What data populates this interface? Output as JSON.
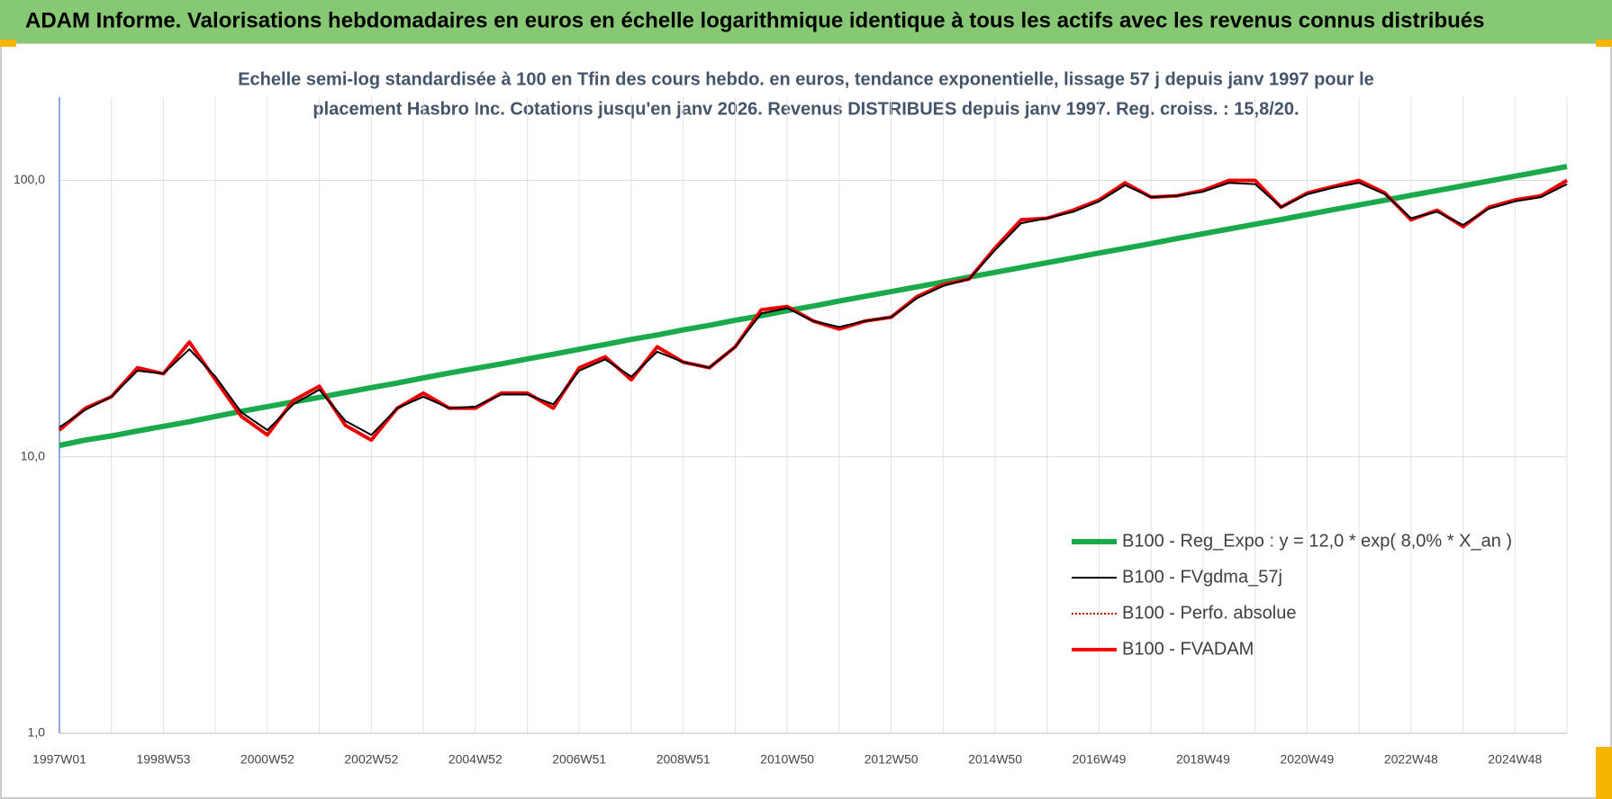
{
  "header": {
    "title": "ADAM Informe. Valorisations hebdomadaires en euros en échelle logarithmique identique à tous les actifs avec les revenus connus distribués"
  },
  "chart_data": {
    "type": "line",
    "subtitle": [
      "Echelle semi-log standardisée à 100 en Tfin des cours hebdo. en euros, tendance exponentielle, lissage 57 j depuis janv 1997 pour le",
      "placement Hasbro Inc. Cotations jusqu'en janv 2026. Revenus DISTRIBUES depuis janv 1997. Reg. croiss. : 15,8/20."
    ],
    "categories": [
      "1997W01",
      null,
      null,
      null,
      "1998W53",
      null,
      null,
      null,
      "2000W52",
      null,
      null,
      null,
      "2002W52",
      null,
      null,
      null,
      "2004W52",
      null,
      null,
      null,
      "2006W51",
      null,
      null,
      null,
      "2008W51",
      null,
      null,
      null,
      "2010W50",
      null,
      null,
      null,
      "2012W50",
      null,
      null,
      null,
      "2014W50",
      null,
      null,
      null,
      "2016W49",
      null,
      null,
      null,
      "2018W49",
      null,
      null,
      null,
      "2020W49",
      null,
      null,
      null,
      "2022W48",
      null,
      null,
      null,
      "2024W48",
      null,
      null
    ],
    "series": [
      {
        "name": "B100 - Reg_Expo : y = 12,0 * exp( 8,0% *  X_an )",
        "color": "#1aaa4b",
        "style": "solid",
        "values": [
          11.0,
          11.5,
          11.9,
          12.4,
          12.9,
          13.4,
          14.0,
          14.6,
          15.2,
          15.8,
          16.4,
          17.1,
          17.8,
          18.5,
          19.3,
          20.1,
          20.9,
          21.7,
          22.6,
          23.5,
          24.5,
          25.5,
          26.6,
          27.6,
          28.8,
          29.9,
          31.2,
          32.4,
          33.8,
          35.1,
          36.6,
          38.1,
          39.6,
          41.2,
          42.9,
          44.7,
          46.5,
          48.4,
          50.4,
          52.4,
          54.6,
          56.8,
          59.1,
          61.6,
          64.1,
          66.7,
          69.4,
          72.2,
          75.2,
          78.3,
          81.5,
          84.8,
          88.3,
          91.9,
          95.6,
          99.5,
          103.6,
          107.8,
          112.2
        ]
      },
      {
        "name": "B100 - FVgdma_57j",
        "color": "#000000",
        "style": "solid",
        "values": [
          12.8,
          14.8,
          16.5,
          20.5,
          20.0,
          24.5,
          19.5,
          14.5,
          12.5,
          15.5,
          17.5,
          13.5,
          12.0,
          15.0,
          16.5,
          15.0,
          15.2,
          16.8,
          16.8,
          15.5,
          20.5,
          22.5,
          19.5,
          24.0,
          22.0,
          21.0,
          25.0,
          33.0,
          34.5,
          31.0,
          29.5,
          31.0,
          32.0,
          37.5,
          41.5,
          44.0,
          56.0,
          70.0,
          73.0,
          77.0,
          84.0,
          96.0,
          87.0,
          88.0,
          91.0,
          98.0,
          97.0,
          80.0,
          89.0,
          94.0,
          98.0,
          89.0,
          73.0,
          77.0,
          69.0,
          79.0,
          84.0,
          87.0,
          97.0
        ]
      },
      {
        "name": "B100 - Perfo. absolue",
        "color": "#c00000",
        "style": "dotted",
        "values": [
          12.5,
          15.0,
          16.5,
          21.0,
          20.0,
          26.0,
          19.0,
          14.0,
          12.0,
          16.0,
          18.0,
          13.0,
          11.5,
          15.0,
          17.0,
          15.0,
          15.0,
          17.0,
          17.0,
          15.0,
          21.0,
          23.0,
          19.0,
          25.0,
          22.0,
          21.0,
          25.0,
          34.0,
          35.0,
          31.0,
          29.0,
          31.0,
          32.0,
          38.0,
          42.0,
          44.0,
          57.0,
          72.0,
          73.0,
          78.0,
          85.0,
          98.0,
          87.0,
          88.0,
          92.0,
          100.0,
          100.0,
          80.0,
          90.0,
          95.0,
          100.0,
          90.0,
          72.0,
          78.0,
          68.0,
          80.0,
          85.0,
          88.0,
          100.0
        ]
      },
      {
        "name": "B100 - FVADAM",
        "color": "#ff0000",
        "style": "solid",
        "values": [
          12.5,
          15.0,
          16.5,
          21.0,
          20.0,
          26.0,
          19.0,
          14.0,
          12.0,
          16.0,
          18.0,
          13.0,
          11.5,
          15.0,
          17.0,
          15.0,
          15.0,
          17.0,
          17.0,
          15.0,
          21.0,
          23.0,
          19.0,
          25.0,
          22.0,
          21.0,
          25.0,
          34.0,
          35.0,
          31.0,
          29.0,
          31.0,
          32.0,
          38.0,
          42.0,
          44.0,
          57.0,
          72.0,
          73.0,
          78.0,
          85.0,
          98.0,
          87.0,
          88.0,
          92.0,
          100.0,
          100.0,
          80.0,
          90.0,
          95.0,
          100.0,
          90.0,
          72.0,
          78.0,
          68.0,
          80.0,
          85.0,
          88.0,
          100.0
        ]
      }
    ],
    "ylim": [
      1,
      200
    ],
    "log_y": true,
    "yticks": [
      {
        "value": 1,
        "label": "1,0"
      },
      {
        "value": 10,
        "label": "10,0"
      },
      {
        "value": 100,
        "label": "100,0"
      }
    ],
    "grid": true,
    "legend": "lower right"
  }
}
